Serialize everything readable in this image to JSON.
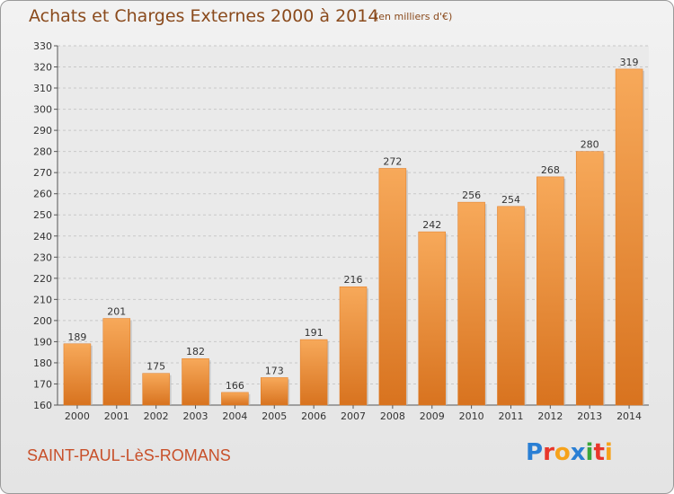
{
  "header": {
    "title": "Achats et Charges Externes 2000 à 2014",
    "subtitle": "(en milliers d'€)"
  },
  "footer": {
    "commune": "SAINT-PAUL-LèS-ROMANS",
    "logo_text": "Proxiti",
    "logo_colors": [
      "#2a7fd4",
      "#e8362a",
      "#f6a21a",
      "#2a7fd4",
      "#3aa63a",
      "#e8362a",
      "#f6a21a"
    ]
  },
  "chart_data": {
    "type": "bar",
    "title": "Achats et Charges Externes 2000 à 2014",
    "subtitle": "(en milliers d'€)",
    "xlabel": "",
    "ylabel": "",
    "categories": [
      "2000",
      "2001",
      "2002",
      "2003",
      "2004",
      "2005",
      "2006",
      "2007",
      "2008",
      "2009",
      "2010",
      "2011",
      "2012",
      "2013",
      "2014"
    ],
    "values": [
      189,
      201,
      175,
      182,
      166,
      173,
      191,
      216,
      272,
      242,
      256,
      254,
      268,
      280,
      319
    ],
    "ylim": [
      160,
      330
    ],
    "yticks": [
      160,
      170,
      180,
      190,
      200,
      210,
      220,
      230,
      240,
      250,
      260,
      270,
      280,
      290,
      300,
      310,
      320,
      330
    ],
    "grid": true,
    "bar_color": "#f0923a",
    "bar_color_light": "#f7a95a",
    "bar_color_dark": "#d8731f"
  }
}
